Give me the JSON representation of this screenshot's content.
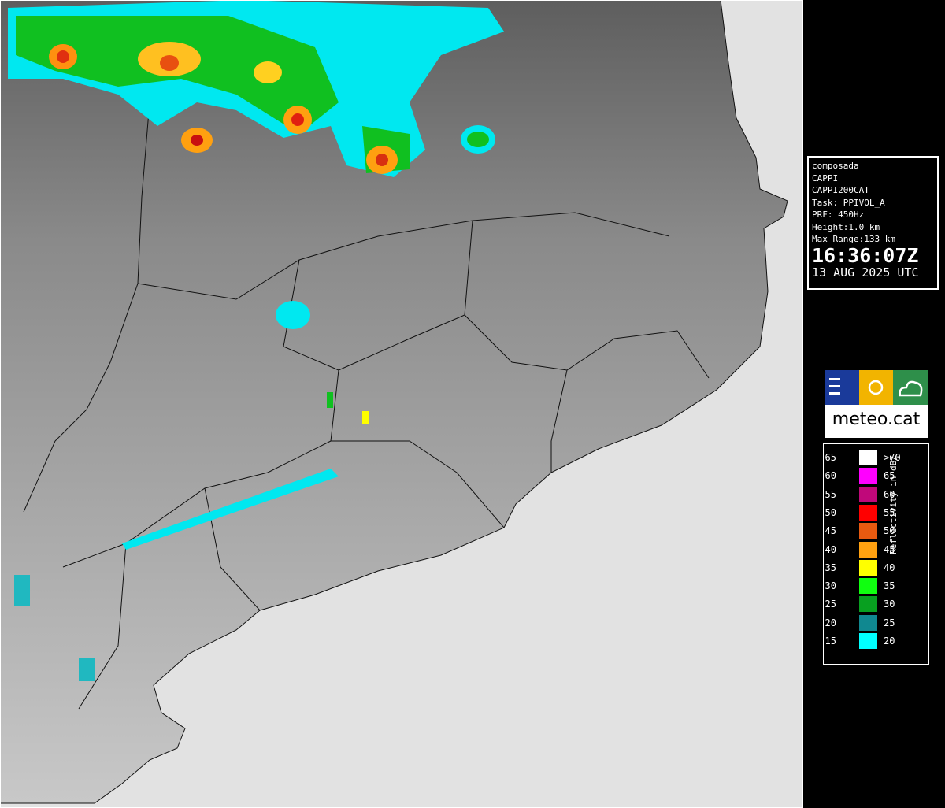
{
  "info_panel": {
    "lines": [
      "composada",
      "CAPPI",
      "CAPPI200CAT",
      "Task: PPIVOL_A",
      "PRF: 450Hz",
      "Height:1.0 km",
      "Max Range:133 km"
    ],
    "time": "16:36:07Z",
    "date": "13 AUG 2025 UTC"
  },
  "logo": {
    "text": "meteo.cat"
  },
  "legend": {
    "title": "Reflectivity in dBZ",
    "rows": [
      {
        "low": "65",
        "high": ">70",
        "color": "#ffffff"
      },
      {
        "low": "60",
        "high": "65",
        "color": "#ff00ff"
      },
      {
        "low": "55",
        "high": "60",
        "color": "#c0087a"
      },
      {
        "low": "50",
        "high": "55",
        "color": "#ff0000"
      },
      {
        "low": "45",
        "high": "50",
        "color": "#e85a10"
      },
      {
        "low": "40",
        "high": "45",
        "color": "#ffa010"
      },
      {
        "low": "35",
        "high": "40",
        "color": "#ffff00"
      },
      {
        "low": "30",
        "high": "35",
        "color": "#10ff10"
      },
      {
        "low": "25",
        "high": "30",
        "color": "#08a020"
      },
      {
        "low": "20",
        "high": "25",
        "color": "#108890"
      },
      {
        "low": "15",
        "high": "20",
        "color": "#00ffff"
      }
    ]
  }
}
